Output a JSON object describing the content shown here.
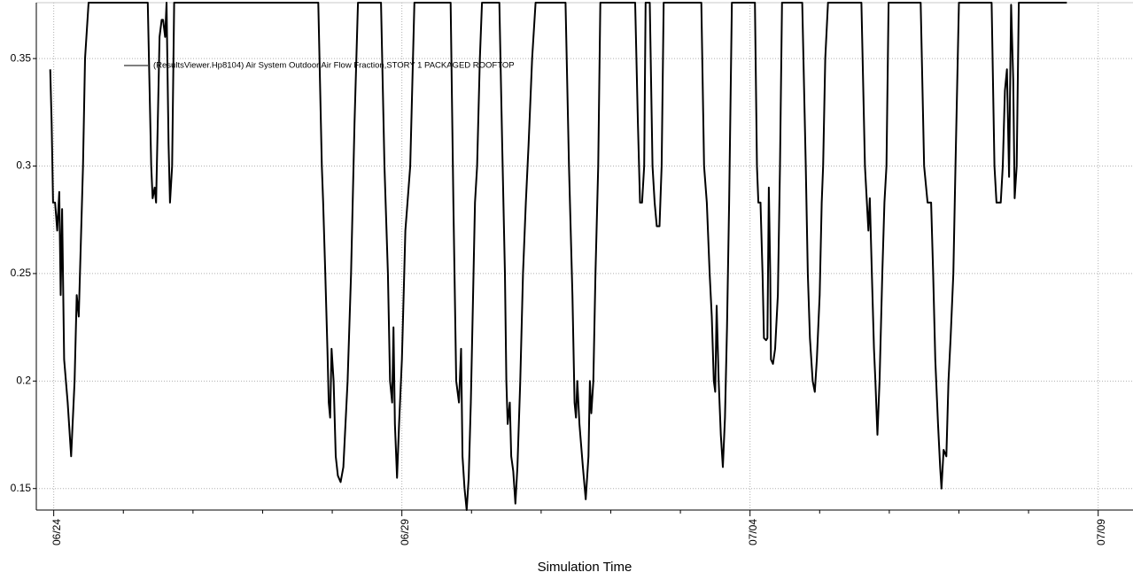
{
  "chart_data": {
    "type": "line",
    "title": "",
    "xlabel": "Simulation Time",
    "ylabel": "",
    "x_tick_labels": [
      "06/24",
      "06/29",
      "07/04",
      "07/09"
    ],
    "x_range": [
      "06/23 18:00",
      "07/09 12:00"
    ],
    "y_ticks": [
      0.15,
      0.2,
      0.25,
      0.3,
      0.35
    ],
    "y_tick_labels": [
      "0.15",
      "0.2",
      "0.25",
      "0.3",
      "0.35"
    ],
    "ylim": [
      0.14,
      0.376
    ],
    "grid": true,
    "legend_position": "top-left",
    "series": [
      {
        "name": "(ResultsViewer.Hp8104) Air System Outdoor Air Flow Fraction,STORY 1 PACKAGED ROOFTOP",
        "color": "#000000",
        "x_unit": "days since 06/24 00:00",
        "points": [
          [
            -0.05,
            0.345
          ],
          [
            -0.03,
            0.32
          ],
          [
            -0.01,
            0.283
          ],
          [
            0.02,
            0.283
          ],
          [
            0.05,
            0.27
          ],
          [
            0.08,
            0.288
          ],
          [
            0.1,
            0.24
          ],
          [
            0.12,
            0.28
          ],
          [
            0.15,
            0.21
          ],
          [
            0.2,
            0.19
          ],
          [
            0.25,
            0.165
          ],
          [
            0.3,
            0.2
          ],
          [
            0.33,
            0.24
          ],
          [
            0.36,
            0.23
          ],
          [
            0.42,
            0.3
          ],
          [
            0.45,
            0.35
          ],
          [
            0.5,
            0.376
          ],
          [
            1.35,
            0.376
          ],
          [
            1.4,
            0.3
          ],
          [
            1.42,
            0.285
          ],
          [
            1.45,
            0.29
          ],
          [
            1.47,
            0.283
          ],
          [
            1.5,
            0.33
          ],
          [
            1.52,
            0.36
          ],
          [
            1.55,
            0.368
          ],
          [
            1.57,
            0.368
          ],
          [
            1.6,
            0.36
          ],
          [
            1.62,
            0.376
          ],
          [
            1.65,
            0.31
          ],
          [
            1.67,
            0.283
          ],
          [
            1.7,
            0.3
          ],
          [
            1.73,
            0.376
          ],
          [
            3.8,
            0.376
          ],
          [
            3.85,
            0.3
          ],
          [
            3.87,
            0.283
          ],
          [
            3.9,
            0.25
          ],
          [
            3.93,
            0.215
          ],
          [
            3.95,
            0.19
          ],
          [
            3.97,
            0.183
          ],
          [
            3.99,
            0.215
          ],
          [
            4.02,
            0.2
          ],
          [
            4.05,
            0.165
          ],
          [
            4.08,
            0.156
          ],
          [
            4.12,
            0.153
          ],
          [
            4.16,
            0.16
          ],
          [
            4.22,
            0.2
          ],
          [
            4.27,
            0.25
          ],
          [
            4.32,
            0.32
          ],
          [
            4.37,
            0.376
          ],
          [
            4.7,
            0.376
          ],
          [
            4.75,
            0.3
          ],
          [
            4.8,
            0.25
          ],
          [
            4.83,
            0.2
          ],
          [
            4.86,
            0.19
          ],
          [
            4.88,
            0.225
          ],
          [
            4.9,
            0.18
          ],
          [
            4.93,
            0.155
          ],
          [
            4.96,
            0.18
          ],
          [
            5.0,
            0.21
          ],
          [
            5.03,
            0.245
          ],
          [
            5.05,
            0.27
          ],
          [
            5.08,
            0.283
          ],
          [
            5.12,
            0.3
          ],
          [
            5.18,
            0.376
          ],
          [
            5.7,
            0.376
          ],
          [
            5.74,
            0.283
          ],
          [
            5.78,
            0.2
          ],
          [
            5.82,
            0.19
          ],
          [
            5.85,
            0.215
          ],
          [
            5.87,
            0.165
          ],
          [
            5.9,
            0.15
          ],
          [
            5.93,
            0.14
          ],
          [
            5.96,
            0.155
          ],
          [
            5.99,
            0.19
          ],
          [
            6.02,
            0.235
          ],
          [
            6.05,
            0.283
          ],
          [
            6.08,
            0.3
          ],
          [
            6.12,
            0.35
          ],
          [
            6.15,
            0.376
          ],
          [
            6.4,
            0.376
          ],
          [
            6.44,
            0.31
          ],
          [
            6.48,
            0.25
          ],
          [
            6.5,
            0.2
          ],
          [
            6.52,
            0.18
          ],
          [
            6.55,
            0.19
          ],
          [
            6.57,
            0.165
          ],
          [
            6.6,
            0.158
          ],
          [
            6.63,
            0.143
          ],
          [
            6.66,
            0.16
          ],
          [
            6.7,
            0.2
          ],
          [
            6.74,
            0.25
          ],
          [
            6.78,
            0.283
          ],
          [
            6.82,
            0.31
          ],
          [
            6.87,
            0.35
          ],
          [
            6.92,
            0.376
          ],
          [
            7.35,
            0.376
          ],
          [
            7.4,
            0.3
          ],
          [
            7.45,
            0.24
          ],
          [
            7.48,
            0.19
          ],
          [
            7.5,
            0.183
          ],
          [
            7.52,
            0.2
          ],
          [
            7.55,
            0.18
          ],
          [
            7.6,
            0.16
          ],
          [
            7.64,
            0.145
          ],
          [
            7.68,
            0.165
          ],
          [
            7.7,
            0.2
          ],
          [
            7.72,
            0.185
          ],
          [
            7.75,
            0.2
          ],
          [
            7.78,
            0.25
          ],
          [
            7.82,
            0.3
          ],
          [
            7.85,
            0.376
          ],
          [
            8.35,
            0.376
          ],
          [
            8.39,
            0.32
          ],
          [
            8.42,
            0.283
          ],
          [
            8.45,
            0.283
          ],
          [
            8.48,
            0.3
          ],
          [
            8.5,
            0.376
          ],
          [
            8.56,
            0.376
          ],
          [
            8.6,
            0.3
          ],
          [
            8.63,
            0.283
          ],
          [
            8.66,
            0.272
          ],
          [
            8.7,
            0.272
          ],
          [
            8.73,
            0.3
          ],
          [
            8.76,
            0.376
          ],
          [
            9.3,
            0.376
          ],
          [
            9.34,
            0.3
          ],
          [
            9.38,
            0.283
          ],
          [
            9.42,
            0.25
          ],
          [
            9.45,
            0.23
          ],
          [
            9.48,
            0.2
          ],
          [
            9.5,
            0.195
          ],
          [
            9.52,
            0.235
          ],
          [
            9.55,
            0.2
          ],
          [
            9.58,
            0.175
          ],
          [
            9.61,
            0.16
          ],
          [
            9.64,
            0.183
          ],
          [
            9.67,
            0.225
          ],
          [
            9.7,
            0.283
          ],
          [
            9.74,
            0.376
          ],
          [
            10.07,
            0.376
          ],
          [
            10.1,
            0.3
          ],
          [
            10.12,
            0.283
          ],
          [
            10.15,
            0.283
          ],
          [
            10.18,
            0.25
          ],
          [
            10.2,
            0.22
          ],
          [
            10.23,
            0.219
          ],
          [
            10.25,
            0.22
          ],
          [
            10.27,
            0.29
          ],
          [
            10.29,
            0.25
          ],
          [
            10.3,
            0.21
          ],
          [
            10.33,
            0.208
          ],
          [
            10.36,
            0.215
          ],
          [
            10.4,
            0.24
          ],
          [
            10.43,
            0.3
          ],
          [
            10.46,
            0.376
          ],
          [
            10.75,
            0.376
          ],
          [
            10.8,
            0.3
          ],
          [
            10.83,
            0.25
          ],
          [
            10.86,
            0.22
          ],
          [
            10.9,
            0.2
          ],
          [
            10.93,
            0.195
          ],
          [
            10.96,
            0.21
          ],
          [
            11.0,
            0.24
          ],
          [
            11.03,
            0.283
          ],
          [
            11.05,
            0.3
          ],
          [
            11.08,
            0.35
          ],
          [
            11.12,
            0.376
          ],
          [
            11.6,
            0.376
          ],
          [
            11.65,
            0.3
          ],
          [
            11.7,
            0.27
          ],
          [
            11.72,
            0.285
          ],
          [
            11.75,
            0.25
          ],
          [
            11.78,
            0.215
          ],
          [
            11.8,
            0.2
          ],
          [
            11.83,
            0.175
          ],
          [
            11.86,
            0.2
          ],
          [
            11.9,
            0.25
          ],
          [
            11.93,
            0.283
          ],
          [
            11.96,
            0.3
          ],
          [
            11.99,
            0.376
          ],
          [
            12.45,
            0.376
          ],
          [
            12.5,
            0.3
          ],
          [
            12.55,
            0.283
          ],
          [
            12.6,
            0.283
          ],
          [
            12.63,
            0.25
          ],
          [
            12.66,
            0.21
          ],
          [
            12.7,
            0.18
          ],
          [
            12.73,
            0.16
          ],
          [
            12.75,
            0.15
          ],
          [
            12.78,
            0.168
          ],
          [
            12.82,
            0.165
          ],
          [
            12.85,
            0.2
          ],
          [
            12.88,
            0.22
          ],
          [
            12.92,
            0.25
          ],
          [
            12.95,
            0.3
          ],
          [
            13.0,
            0.376
          ],
          [
            13.47,
            0.376
          ],
          [
            13.51,
            0.3
          ],
          [
            13.54,
            0.283
          ],
          [
            13.6,
            0.283
          ],
          [
            13.63,
            0.3
          ],
          [
            13.66,
            0.335
          ],
          [
            13.69,
            0.345
          ],
          [
            13.72,
            0.295
          ],
          [
            13.75,
            0.375
          ],
          [
            13.78,
            0.34
          ],
          [
            13.8,
            0.285
          ],
          [
            13.83,
            0.3
          ],
          [
            13.86,
            0.376
          ],
          [
            14.55,
            0.376
          ]
        ]
      }
    ]
  }
}
